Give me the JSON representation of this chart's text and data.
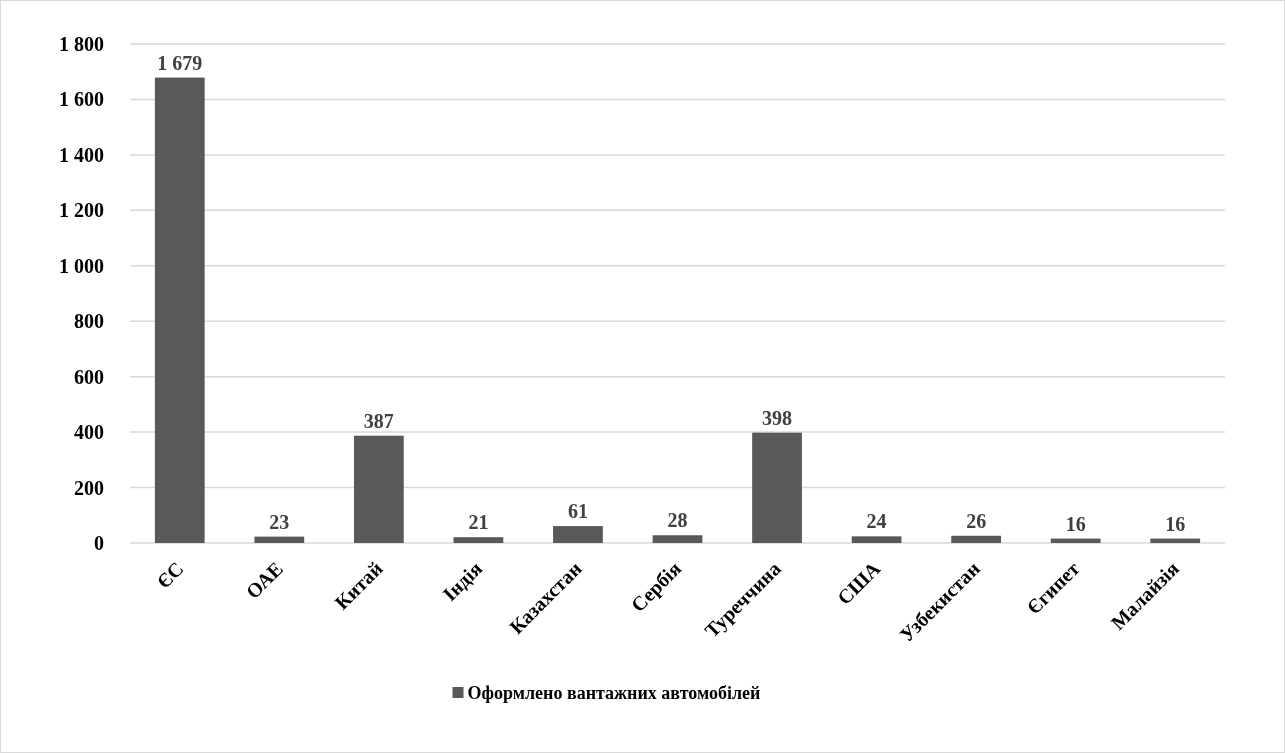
{
  "chart_data": {
    "type": "bar",
    "categories": [
      "ЄС",
      "ОАЕ",
      "Китай",
      "Індія",
      "Казахстан",
      "Сербія",
      "Туреччина",
      "США",
      "Узбекистан",
      "Єгипет",
      "Малайзія"
    ],
    "series": [
      {
        "name": "Оформлено вантажних автомобілей",
        "color": "#595959",
        "values": [
          1679,
          23,
          387,
          21,
          61,
          28,
          398,
          24,
          26,
          16,
          16
        ],
        "value_labels": [
          "1 679",
          "23",
          "387",
          "21",
          "61",
          "28",
          "398",
          "24",
          "26",
          "16",
          "16"
        ]
      }
    ],
    "ylim": [
      0,
      1800
    ],
    "yticks": [
      0,
      200,
      400,
      600,
      800,
      {
        "value": 1000,
        "label": "1 000"
      },
      {
        "value": 1200,
        "label": "1 200"
      },
      {
        "value": 1400,
        "label": "1 400"
      },
      {
        "value": 1600,
        "label": "1 600"
      },
      {
        "value": 1800,
        "label": "1 800"
      }
    ],
    "grid": "y",
    "legend": "bottom"
  }
}
